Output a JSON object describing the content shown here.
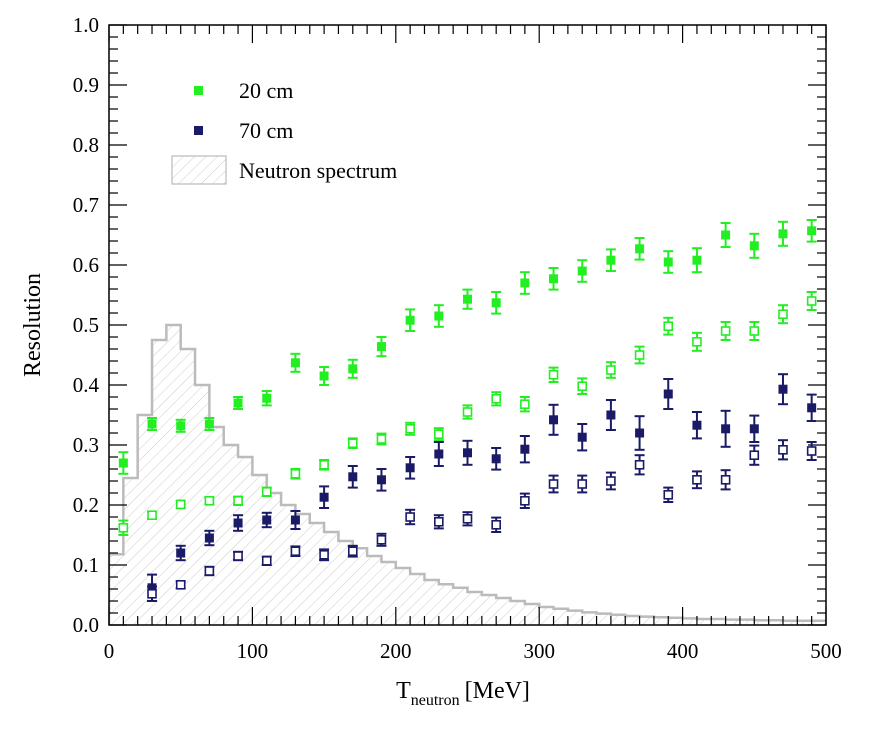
{
  "chart_data": {
    "type": "scatter",
    "xlabel": "T",
    "xlabel_sub": "neutron",
    "xlabel_unit": "[MeV]",
    "ylabel": "Resolution",
    "xlim": [
      0,
      500
    ],
    "ylim": [
      0,
      1.0
    ],
    "xticks": [
      "0",
      "100",
      "200",
      "300",
      "400",
      "500"
    ],
    "yticks": [
      "0.0",
      "0.1",
      "0.2",
      "0.3",
      "0.4",
      "0.5",
      "0.6",
      "0.7",
      "0.8",
      "0.9",
      "1.0"
    ],
    "grid": false,
    "legend_position": "top-left",
    "colors": {
      "green": "#22ee22",
      "navy": "#1a1a66",
      "spectrum": "#bbbbbb"
    },
    "legend": [
      {
        "label": "20 cm",
        "marker": "filled-square",
        "color": "#22ee22"
      },
      {
        "label": "70 cm",
        "marker": "filled-square",
        "color": "#1a1a66"
      },
      {
        "label": "Neutron spectrum",
        "marker": "hatched-box",
        "color": "#bbbbbb"
      }
    ],
    "x": [
      10,
      30,
      50,
      70,
      90,
      110,
      130,
      150,
      170,
      190,
      210,
      230,
      250,
      270,
      290,
      310,
      330,
      350,
      370,
      390,
      410,
      430,
      450,
      470,
      490
    ],
    "series": [
      {
        "name": "20 cm",
        "marker": "filled",
        "color": "#22ee22",
        "y": [
          0.27,
          0.335,
          0.332,
          0.335,
          0.37,
          0.378,
          0.437,
          0.415,
          0.427,
          0.464,
          0.508,
          0.515,
          0.543,
          0.537,
          0.57,
          0.577,
          0.59,
          0.608,
          0.627,
          0.605,
          0.608,
          0.65,
          0.632,
          0.652,
          0.657
        ],
        "err": [
          0.018,
          0.01,
          0.01,
          0.01,
          0.01,
          0.012,
          0.015,
          0.015,
          0.015,
          0.016,
          0.018,
          0.018,
          0.016,
          0.018,
          0.018,
          0.018,
          0.018,
          0.018,
          0.018,
          0.018,
          0.02,
          0.02,
          0.02,
          0.02,
          0.018
        ]
      },
      {
        "marker": "open",
        "color": "#22ee22",
        "y": [
          0.162,
          0.183,
          0.201,
          0.207,
          0.207,
          0.222,
          0.252,
          0.267,
          0.303,
          0.31,
          0.327,
          0.318,
          0.355,
          0.377,
          0.368,
          0.417,
          0.398,
          0.425,
          0.45,
          0.498,
          0.472,
          0.49,
          0.49,
          0.518,
          0.54
        ],
        "err": [
          0.012,
          0.006,
          0.006,
          0.006,
          0.007,
          0.007,
          0.008,
          0.008,
          0.008,
          0.009,
          0.01,
          0.01,
          0.011,
          0.011,
          0.012,
          0.012,
          0.013,
          0.013,
          0.014,
          0.014,
          0.015,
          0.015,
          0.015,
          0.015,
          0.015
        ]
      },
      {
        "name": "70 cm",
        "marker": "filled",
        "color": "#1a1a66",
        "y": [
          null,
          0.062,
          0.12,
          0.145,
          0.17,
          0.175,
          0.175,
          0.213,
          0.247,
          0.242,
          0.262,
          0.285,
          0.287,
          0.277,
          0.293,
          0.342,
          0.313,
          0.35,
          0.32,
          0.385,
          0.333,
          0.327,
          0.327,
          0.393,
          0.362
        ],
        "err": [
          null,
          0.022,
          0.012,
          0.012,
          0.013,
          0.012,
          0.015,
          0.018,
          0.018,
          0.018,
          0.018,
          0.02,
          0.02,
          0.018,
          0.022,
          0.025,
          0.022,
          0.025,
          0.028,
          0.025,
          0.022,
          0.03,
          0.022,
          0.025,
          0.022
        ]
      },
      {
        "marker": "open",
        "color": "#1a1a66",
        "y": [
          null,
          0.052,
          0.067,
          0.09,
          0.115,
          0.107,
          0.123,
          0.117,
          0.123,
          0.142,
          0.18,
          0.172,
          0.177,
          0.167,
          0.207,
          0.235,
          0.235,
          0.24,
          0.267,
          0.217,
          0.242,
          0.242,
          0.283,
          0.292,
          0.29
        ],
        "err": [
          null,
          0.012,
          0.006,
          0.007,
          0.007,
          0.007,
          0.008,
          0.009,
          0.009,
          0.01,
          0.012,
          0.011,
          0.011,
          0.012,
          0.012,
          0.014,
          0.014,
          0.014,
          0.016,
          0.012,
          0.014,
          0.016,
          0.016,
          0.016,
          0.015
        ]
      }
    ],
    "spectrum": {
      "bin_width": 10,
      "bin_starts": [
        0,
        10,
        20,
        30,
        40,
        50,
        60,
        70,
        80,
        90,
        100,
        110,
        120,
        130,
        140,
        150,
        160,
        170,
        180,
        190,
        200,
        210,
        220,
        230,
        240,
        250,
        260,
        270,
        280,
        290,
        300,
        310,
        320,
        330,
        340,
        350,
        360,
        370,
        380,
        390,
        400,
        410,
        420,
        430,
        440,
        450,
        460,
        470,
        480,
        490
      ],
      "heights": [
        0.118,
        0.245,
        0.35,
        0.475,
        0.5,
        0.46,
        0.4,
        0.33,
        0.3,
        0.28,
        0.25,
        0.22,
        0.2,
        0.185,
        0.17,
        0.155,
        0.14,
        0.128,
        0.115,
        0.105,
        0.095,
        0.085,
        0.075,
        0.068,
        0.062,
        0.055,
        0.05,
        0.045,
        0.04,
        0.035,
        0.03,
        0.027,
        0.024,
        0.021,
        0.019,
        0.017,
        0.015,
        0.014,
        0.013,
        0.012,
        0.011,
        0.01,
        0.01,
        0.009,
        0.009,
        0.008,
        0.008,
        0.007,
        0.007,
        0.007
      ]
    }
  }
}
